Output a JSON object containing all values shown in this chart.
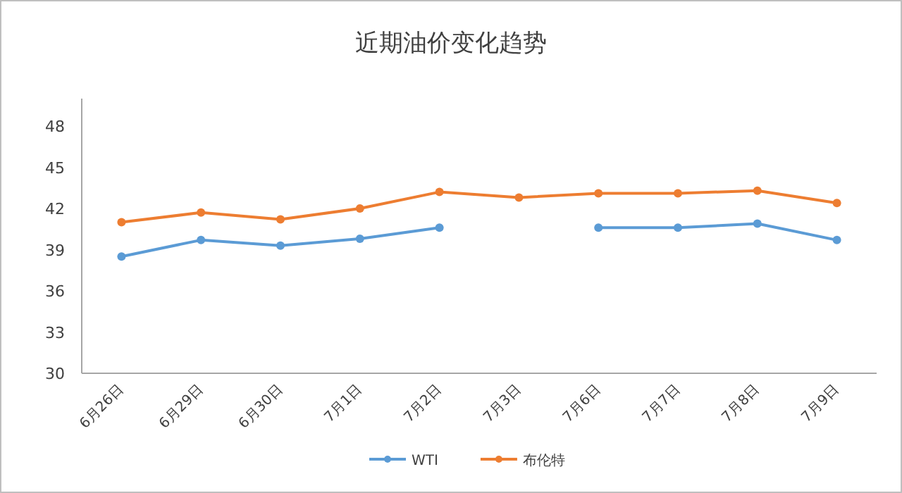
{
  "chart_data": {
    "type": "line",
    "title": "近期油价变化趋势",
    "categories": [
      "6月26日",
      "6月29日",
      "6月30日",
      "7月1日",
      "7月2日",
      "7月3日",
      "7月6日",
      "7月7日",
      "7月8日",
      "7月9日"
    ],
    "series": [
      {
        "name": "WTI",
        "color": "#5b9bd5",
        "values": [
          38.5,
          39.7,
          39.3,
          39.8,
          40.6,
          null,
          40.6,
          40.6,
          40.9,
          39.7
        ]
      },
      {
        "name": "布伦特",
        "color": "#ed7d31",
        "values": [
          41.0,
          41.7,
          41.2,
          42.0,
          43.2,
          42.8,
          43.1,
          43.1,
          43.3,
          42.4
        ]
      }
    ],
    "ylim": [
      30,
      50
    ],
    "yticks": [
      30,
      33,
      36,
      39,
      42,
      45,
      48
    ],
    "grid": false,
    "legend": "bottom",
    "marker": "circle",
    "line_style": "solid"
  }
}
